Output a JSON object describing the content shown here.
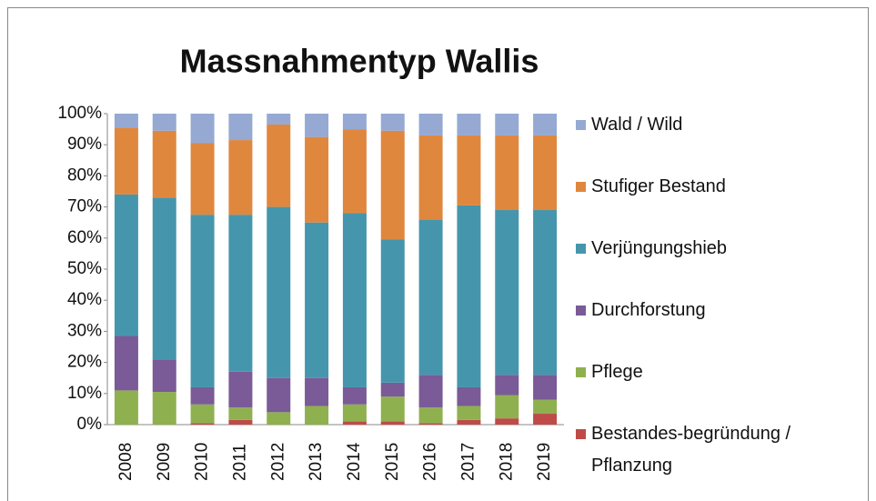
{
  "chart_data": {
    "type": "bar",
    "stacked": true,
    "title": "Massnahmentyp Wallis",
    "categories": [
      "2008",
      "2009",
      "2010",
      "2011",
      "2012",
      "2013",
      "2014",
      "2015",
      "2016",
      "2017",
      "2018",
      "2019"
    ],
    "series": [
      {
        "name": "Bestandes-begründung / Pflanzung",
        "color": "#be4b48",
        "values": [
          0,
          0,
          0.5,
          1.5,
          0,
          0,
          1,
          1,
          0.5,
          1.5,
          2,
          3.5
        ]
      },
      {
        "name": "Pflege",
        "color": "#8fb04f",
        "values": [
          11,
          10.5,
          6,
          4,
          4,
          6,
          5.5,
          8,
          5,
          4.5,
          7.5,
          4.5
        ]
      },
      {
        "name": "Durchforstung",
        "color": "#7a5a97",
        "values": [
          17.5,
          10.5,
          5.5,
          11.5,
          11,
          9,
          5.5,
          4.5,
          10.5,
          6,
          6.5,
          8
        ]
      },
      {
        "name": "Verjüngungshieb",
        "color": "#4596ad",
        "values": [
          45.5,
          52,
          55.5,
          50.5,
          55,
          50,
          56,
          46,
          50,
          58.5,
          53,
          53
        ]
      },
      {
        "name": "Stufiger Bestand",
        "color": "#e0873e",
        "values": [
          21.5,
          21.5,
          23,
          24,
          26.5,
          27.5,
          27,
          35,
          27,
          22.5,
          24,
          24
        ]
      },
      {
        "name": "Wald / Wild",
        "color": "#95a9d3",
        "values": [
          4.5,
          5.5,
          9.5,
          8.5,
          3.5,
          7.5,
          5,
          5.5,
          7,
          7,
          7,
          7
        ]
      }
    ],
    "ylim": [
      0,
      100
    ],
    "yticks": [
      {
        "value": 0,
        "label": "0%"
      },
      {
        "value": 10,
        "label": "10%"
      },
      {
        "value": 20,
        "label": "20%"
      },
      {
        "value": 30,
        "label": "30%"
      },
      {
        "value": 40,
        "label": "40%"
      },
      {
        "value": 50,
        "label": "50%"
      },
      {
        "value": 60,
        "label": "60%"
      },
      {
        "value": 70,
        "label": "70%"
      },
      {
        "value": 80,
        "label": "80%"
      },
      {
        "value": 90,
        "label": "90%"
      },
      {
        "value": 100,
        "label": "100%"
      }
    ],
    "legend": "right"
  }
}
